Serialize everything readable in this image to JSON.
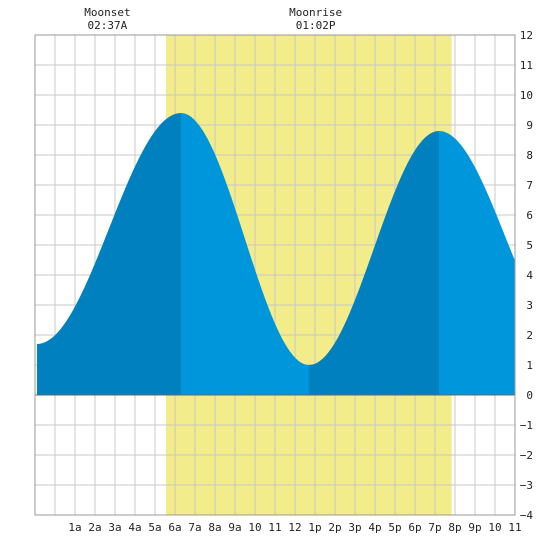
{
  "chart_data": {
    "type": "area",
    "title": "",
    "xlabel": "",
    "ylabel": "",
    "x_range_hours": [
      -1,
      23
    ],
    "ylim": [
      -4,
      12
    ],
    "grid": true,
    "x_tick_labels": [
      "1a",
      "2a",
      "3a",
      "4a",
      "5a",
      "6a",
      "7a",
      "8a",
      "9a",
      "10",
      "11",
      "12",
      "1p",
      "2p",
      "3p",
      "4p",
      "5p",
      "6p",
      "7p",
      "8p",
      "9p",
      "10",
      "11"
    ],
    "y_tick_labels": [
      "12",
      "11",
      "10",
      "9",
      "8",
      "7",
      "6",
      "5",
      "4",
      "3",
      "2",
      "1",
      "0",
      "−1",
      "−2",
      "−3",
      "−4"
    ],
    "moon_events": [
      {
        "label": "Moonset",
        "time": "02:37A",
        "hour": 2.62
      },
      {
        "label": "Moonrise",
        "time": "01:02P",
        "hour": 13.03
      }
    ],
    "daylight_hours": [
      5.55,
      19.83
    ],
    "tide_extremes": [
      {
        "type": "low",
        "hour": -0.9,
        "height": 1.7
      },
      {
        "type": "high",
        "hour": 6.3,
        "height": 9.4
      },
      {
        "type": "low",
        "hour": 12.7,
        "height": 1.0
      },
      {
        "type": "high",
        "hour": 19.2,
        "height": 8.8
      },
      {
        "type": "low",
        "hour": 25.8,
        "height": 1.8
      }
    ],
    "colors": {
      "daylight": "#f2ec8a",
      "rising_tide": "#0080bf",
      "falling_tide": "#0096dc",
      "grid": "#c8c8c8",
      "background": "#ffffff"
    }
  }
}
